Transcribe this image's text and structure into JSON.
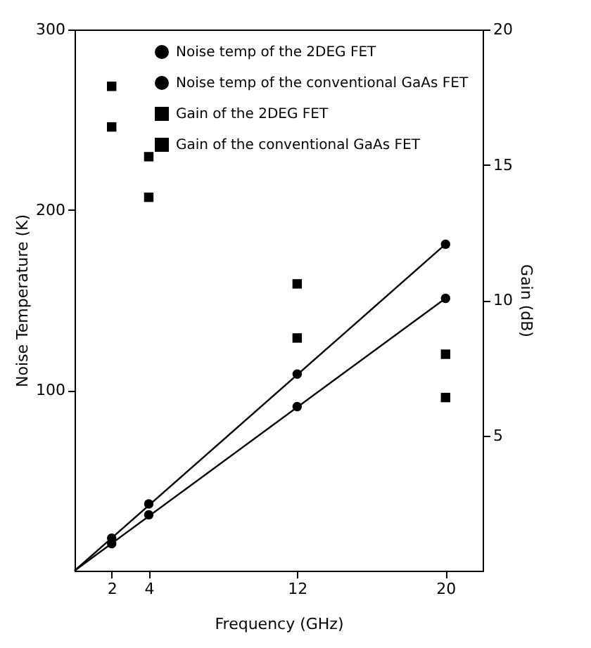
{
  "chart_data": {
    "type": "scatter",
    "xlabel": "Frequency (GHz)",
    "ylabel": "Noise Temperature (K)",
    "y2label": "Gain (dB)",
    "xlim": [
      0,
      22
    ],
    "xticks": [
      2,
      4,
      12,
      20
    ],
    "ylim": [
      0,
      300
    ],
    "yticks": [
      100,
      200,
      300
    ],
    "y2lim": [
      0,
      20
    ],
    "y2ticks": [
      5,
      10,
      15,
      20
    ],
    "grid": false,
    "legend": "top right",
    "series": [
      {
        "name": "Noise temp of the 2DEG FET",
        "color": "#000000",
        "marker": "circle",
        "x": [
          2,
          4,
          12,
          20
        ],
        "values": [
          15,
          31,
          91,
          151
        ]
      },
      {
        "name": "Noise temp of the conventional GaAs FET",
        "color": "#000000",
        "marker": "circle",
        "x": [
          2,
          4,
          12,
          20
        ],
        "values": [
          18,
          37,
          109,
          181
        ]
      },
      {
        "name": "Gain of the 2DEG FET",
        "color": "#000000",
        "marker": "square",
        "axis": "y2",
        "x": [
          2,
          4,
          12,
          20
        ],
        "values": [
          17.9,
          15.3,
          10.6,
          8.0
        ]
      },
      {
        "name": "Gain of the conventional GaAs FET",
        "color": "#000000",
        "marker": "square",
        "axis": "y2",
        "x": [
          2,
          4,
          12,
          20
        ],
        "values": [
          16.4,
          13.8,
          8.6,
          6.4
        ]
      },
      {
        "type": "line",
        "color": "#000000",
        "marker": "none",
        "line_style": "solid",
        "x": [
          0,
          20
        ],
        "values": [
          0,
          151
        ]
      },
      {
        "type": "line",
        "color": "#000000",
        "marker": "none",
        "line_style": "solid",
        "x": [
          0,
          20
        ],
        "values": [
          0,
          181
        ]
      }
    ]
  }
}
